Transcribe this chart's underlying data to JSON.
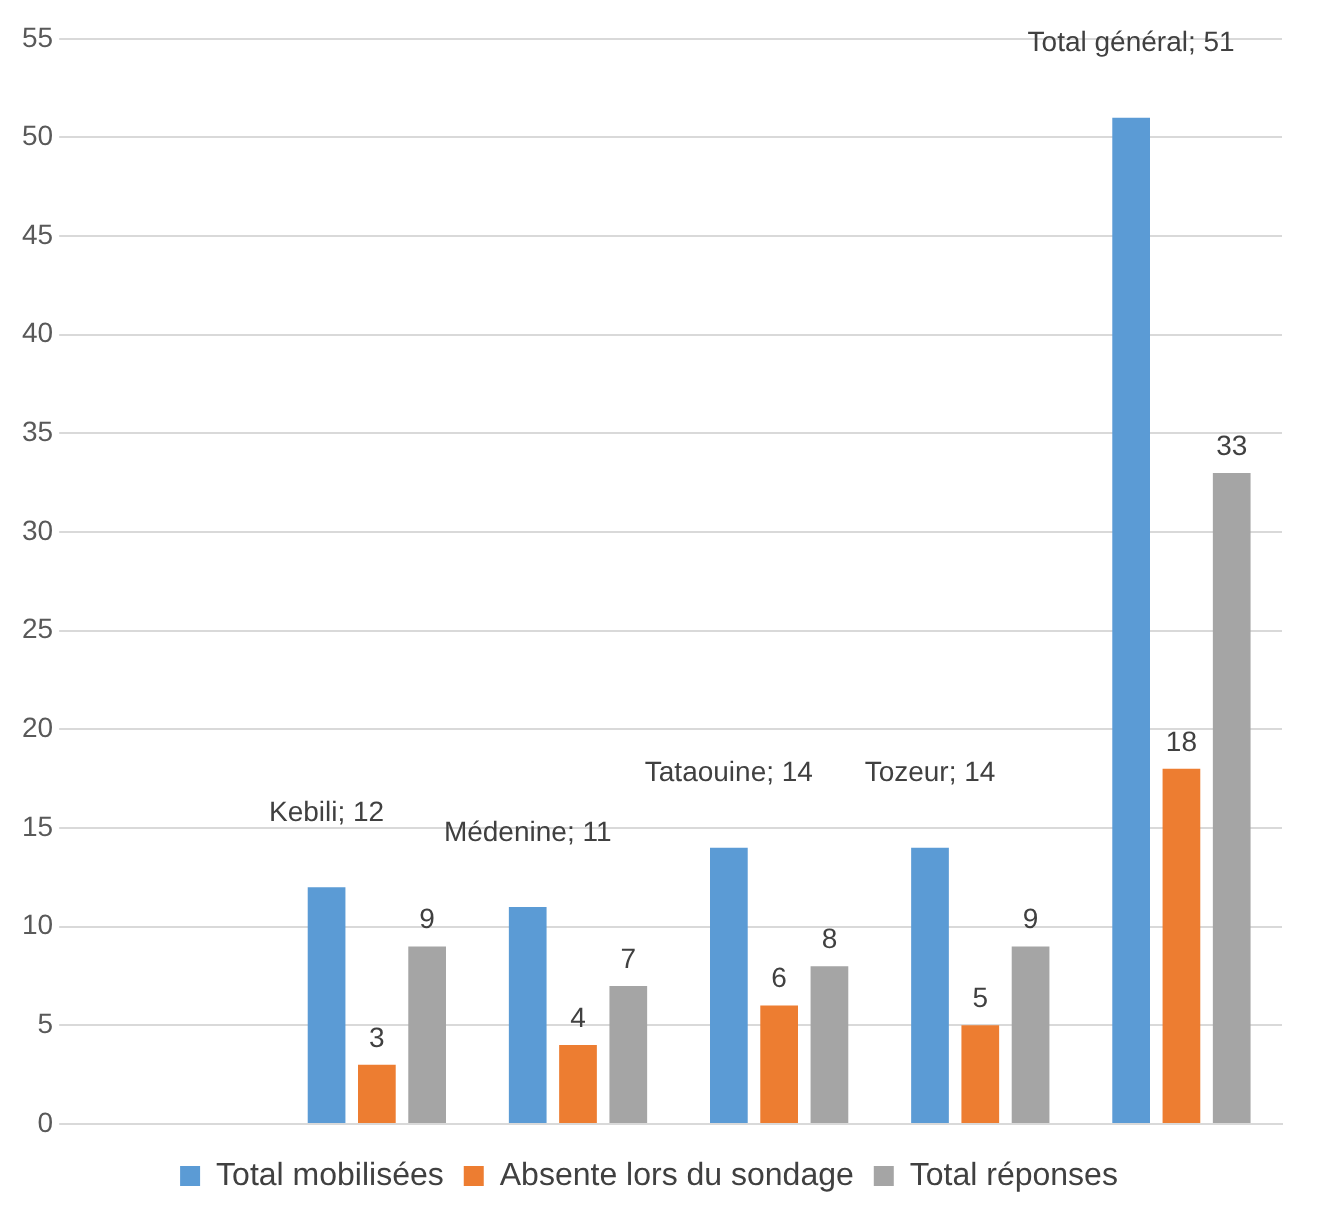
{
  "chart_data": {
    "type": "bar",
    "categories": [
      null,
      null,
      null,
      null,
      null,
      null
    ],
    "series": [
      {
        "name": "Total mobilisées",
        "color": "#5b9bd5",
        "values": [
          null,
          12,
          11,
          14,
          14,
          51
        ],
        "value_labels": [
          null,
          "Kebili; 12",
          "Médenine; 11",
          "Tataouine; 14",
          "Tozeur; 14",
          "Total général; 51"
        ]
      },
      {
        "name": "Absente lors du sondage",
        "color": "#ed7d31",
        "values": [
          null,
          3,
          4,
          6,
          5,
          18
        ]
      },
      {
        "name": "Total réponses",
        "color": "#a5a5a5",
        "values": [
          null,
          9,
          7,
          8,
          9,
          33
        ]
      }
    ],
    "ylim": [
      0,
      55
    ],
    "yticks": [
      0,
      5,
      10,
      15,
      20,
      25,
      30,
      35,
      40,
      45,
      50,
      55
    ],
    "grid": "y",
    "legend": "bottom",
    "data_labels": true,
    "tick_labels": "y"
  }
}
